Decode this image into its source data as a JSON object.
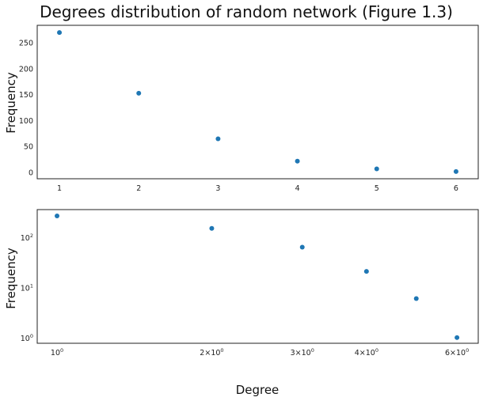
{
  "chart_data": [
    {
      "type": "scatter",
      "title": "Degrees distribution of random network (Figure 1.3)",
      "xlabel": "",
      "ylabel": "Frequency",
      "xscale": "linear",
      "yscale": "linear",
      "xlim": [
        0.72,
        6.28
      ],
      "ylim": [
        -13,
        283
      ],
      "xticks": [
        1,
        2,
        3,
        4,
        5,
        6
      ],
      "yticks": [
        0,
        50,
        100,
        150,
        200,
        250
      ],
      "grid": false,
      "color": "#1f77b4",
      "x": [
        1,
        2,
        3,
        4,
        5,
        6
      ],
      "y": [
        269,
        152,
        64,
        21,
        6,
        1
      ]
    },
    {
      "type": "scatter",
      "title": "",
      "xlabel": "Degree",
      "ylabel": "Frequency",
      "xscale": "log",
      "yscale": "log",
      "xlim": [
        0.915,
        6.6
      ],
      "ylim": [
        0.77,
        360
      ],
      "xticks": [
        {
          "value": 1,
          "base": "10",
          "exp": "0"
        },
        {
          "value": 2,
          "mant": "2",
          "base": "10",
          "exp": "0"
        },
        {
          "value": 3,
          "mant": "3",
          "base": "10",
          "exp": "0"
        },
        {
          "value": 4,
          "mant": "4",
          "base": "10",
          "exp": "0"
        },
        {
          "value": 6,
          "mant": "6",
          "base": "10",
          "exp": "0"
        }
      ],
      "yticks": [
        {
          "value": 1,
          "base": "10",
          "exp": "0"
        },
        {
          "value": 10,
          "base": "10",
          "exp": "1"
        },
        {
          "value": 100,
          "base": "10",
          "exp": "2"
        }
      ],
      "grid": false,
      "color": "#1f77b4",
      "x": [
        1,
        2,
        3,
        4,
        5,
        6
      ],
      "y": [
        269,
        152,
        64,
        21,
        6,
        1
      ]
    }
  ]
}
